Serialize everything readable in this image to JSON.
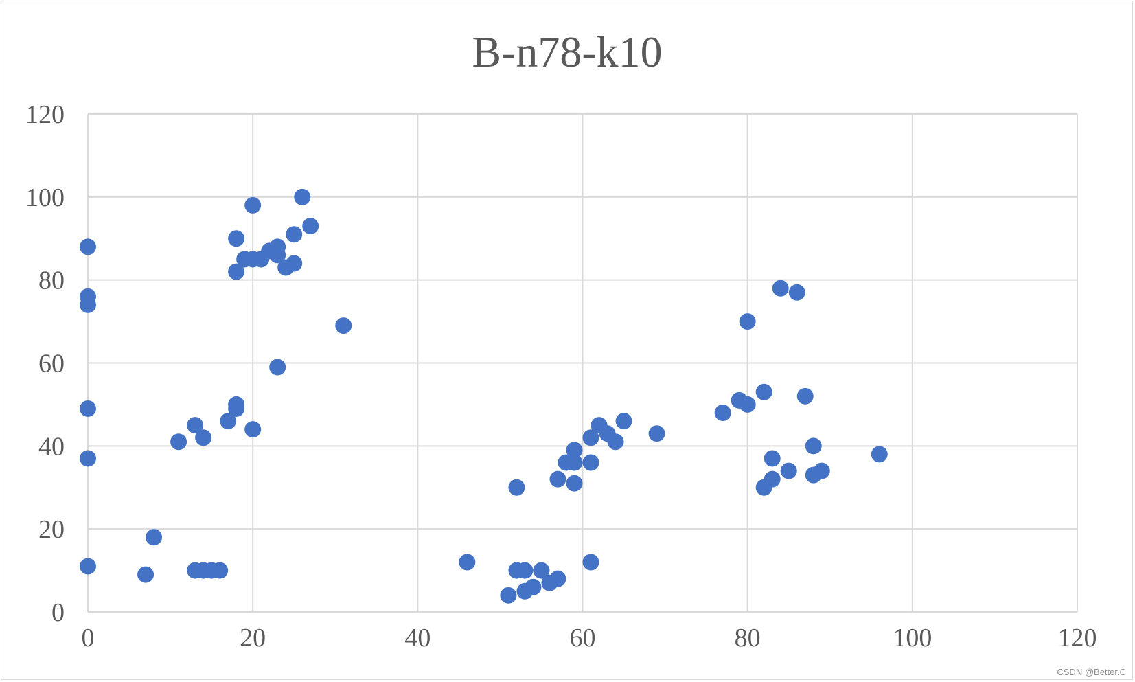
{
  "chart_data": {
    "type": "scatter",
    "title": "B-n78-k10",
    "xlabel": "",
    "ylabel": "",
    "xlim": [
      0,
      120
    ],
    "ylim": [
      0,
      120
    ],
    "xticks": [
      0,
      20,
      40,
      60,
      80,
      100,
      120
    ],
    "yticks": [
      0,
      20,
      40,
      60,
      80,
      100,
      120
    ],
    "grid": true,
    "legend": "none",
    "marker_color": "#4472C4",
    "grid_color": "#D9D9D9",
    "series": [
      {
        "points": [
          [
            0,
            88
          ],
          [
            0,
            76
          ],
          [
            0,
            74
          ],
          [
            0,
            49
          ],
          [
            0,
            37
          ],
          [
            0,
            11
          ],
          [
            7,
            9
          ],
          [
            8,
            18
          ],
          [
            11,
            41
          ],
          [
            13,
            45
          ],
          [
            13,
            10
          ],
          [
            14,
            42
          ],
          [
            14,
            10
          ],
          [
            15,
            10
          ],
          [
            16,
            10
          ],
          [
            17,
            46
          ],
          [
            18,
            50
          ],
          [
            18,
            49
          ],
          [
            18,
            90
          ],
          [
            18,
            82
          ],
          [
            19,
            85
          ],
          [
            20,
            98
          ],
          [
            20,
            85
          ],
          [
            20,
            44
          ],
          [
            21,
            85
          ],
          [
            22,
            87
          ],
          [
            23,
            88
          ],
          [
            23,
            86
          ],
          [
            23,
            59
          ],
          [
            24,
            83
          ],
          [
            25,
            91
          ],
          [
            25,
            84
          ],
          [
            26,
            100
          ],
          [
            27,
            93
          ],
          [
            31,
            69
          ],
          [
            46,
            12
          ],
          [
            51,
            4
          ],
          [
            52,
            30
          ],
          [
            52,
            10
          ],
          [
            53,
            10
          ],
          [
            53,
            5
          ],
          [
            54,
            6
          ],
          [
            55,
            10
          ],
          [
            56,
            7
          ],
          [
            57,
            8
          ],
          [
            57,
            32
          ],
          [
            58,
            36
          ],
          [
            59,
            39
          ],
          [
            59,
            36
          ],
          [
            59,
            31
          ],
          [
            61,
            42
          ],
          [
            61,
            36
          ],
          [
            61,
            12
          ],
          [
            62,
            45
          ],
          [
            63,
            43
          ],
          [
            64,
            41
          ],
          [
            65,
            46
          ],
          [
            69,
            43
          ],
          [
            77,
            48
          ],
          [
            79,
            51
          ],
          [
            80,
            50
          ],
          [
            80,
            70
          ],
          [
            82,
            53
          ],
          [
            82,
            30
          ],
          [
            83,
            37
          ],
          [
            83,
            32
          ],
          [
            84,
            78
          ],
          [
            85,
            34
          ],
          [
            86,
            77
          ],
          [
            87,
            52
          ],
          [
            88,
            40
          ],
          [
            88,
            33
          ],
          [
            89,
            34
          ],
          [
            96,
            38
          ]
        ]
      }
    ]
  },
  "watermark": "CSDN @Better.C"
}
